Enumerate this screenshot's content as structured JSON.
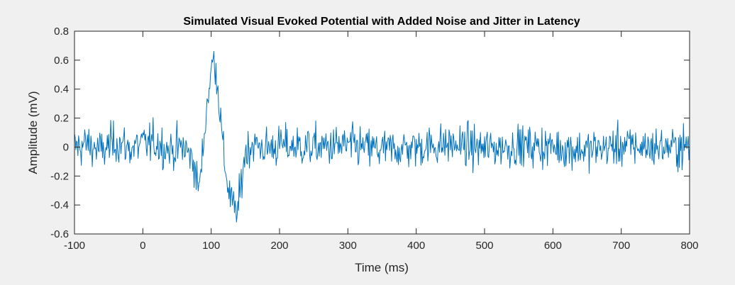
{
  "chart_data": {
    "type": "line",
    "title": "Simulated Visual Evoked Potential with Added Noise and Jitter in Latency",
    "xlabel": "Time (ms)",
    "ylabel": "Amplitude (mV)",
    "xlim": [
      -100,
      800
    ],
    "ylim": [
      -0.6,
      0.8
    ],
    "xticks": [
      -100,
      0,
      100,
      200,
      300,
      400,
      500,
      600,
      700,
      800
    ],
    "xtick_labels": [
      "-100",
      "0",
      "100",
      "200",
      "300",
      "400",
      "500",
      "600",
      "700",
      "800"
    ],
    "yticks": [
      -0.6,
      -0.4,
      -0.2,
      0,
      0.2,
      0.4,
      0.6,
      0.8
    ],
    "ytick_labels": [
      "-0.6",
      "-0.4",
      "-0.2",
      "0",
      "0.2",
      "0.4",
      "0.6",
      "0.8"
    ],
    "grid": false,
    "box": true,
    "line_color": "#0072BD",
    "series": [
      {
        "x": [
          -100,
          -80,
          -60,
          -40,
          -20,
          0,
          20,
          40,
          60,
          75,
          80,
          85,
          90,
          95,
          100,
          104,
          108,
          112,
          116,
          120,
          125,
          130,
          135,
          140,
          145,
          150,
          160,
          180,
          200,
          250,
          300,
          350,
          400,
          450,
          500,
          550,
          600,
          650,
          700,
          750,
          800
        ],
        "values": [
          0.0,
          0.02,
          -0.03,
          0.04,
          -0.01,
          0.02,
          0.03,
          -0.02,
          0.0,
          -0.1,
          -0.28,
          -0.2,
          0.1,
          0.35,
          0.52,
          0.62,
          0.5,
          0.3,
          0.05,
          -0.12,
          -0.28,
          -0.38,
          -0.45,
          -0.42,
          -0.2,
          -0.03,
          0.02,
          -0.01,
          0.01,
          0.0,
          0.01,
          -0.02,
          0.0,
          0.02,
          -0.01,
          0.01,
          0.0,
          -0.02,
          0.01,
          0.0,
          0.0
        ],
        "noise_sd": 0.07,
        "sample_step_ms": 1
      }
    ]
  }
}
